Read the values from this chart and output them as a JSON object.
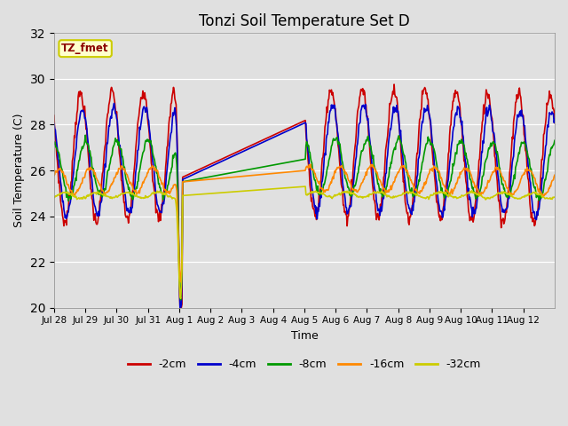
{
  "title": "Tonzi Soil Temperature Set D",
  "xlabel": "Time",
  "ylabel": "Soil Temperature (C)",
  "ylim": [
    20,
    32
  ],
  "yticks": [
    20,
    22,
    24,
    26,
    28,
    30,
    32
  ],
  "annotation_text": "TZ_fmet",
  "annotation_color": "#8B0000",
  "annotation_bg": "#FFFFCC",
  "annotation_border": "#CCCC00",
  "line_colors": {
    "-2cm": "#CC0000",
    "-4cm": "#0000CC",
    "-8cm": "#009900",
    "-16cm": "#FF8800",
    "-32cm": "#CCCC00"
  },
  "bg_color": "#E0E0E0",
  "plot_bg_color": "#E0E0E0",
  "xtick_labels": [
    "Jul 28",
    "Jul 29",
    "Jul 30",
    "Jul 31",
    "Aug 1",
    "Aug 2",
    "Aug 3",
    "Aug 4",
    "Aug 5",
    "Aug 6",
    "Aug 7",
    "Aug 8",
    "Aug 9",
    "Aug 10",
    "Aug 11",
    "Aug 12"
  ]
}
